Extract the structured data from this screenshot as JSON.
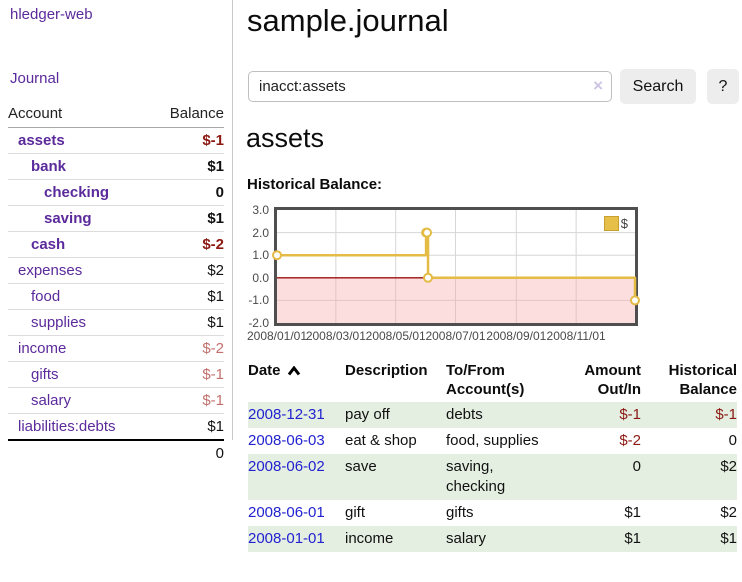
{
  "app": {
    "brand": "hledger-web",
    "nav_journal": "Journal"
  },
  "sidebar": {
    "table_headers": {
      "account": "Account",
      "balance": "Balance"
    },
    "accounts": [
      {
        "name": "assets",
        "level": 1,
        "bold": true,
        "balance": "$-1",
        "balance_style": "neg"
      },
      {
        "name": "bank",
        "level": 2,
        "bold": true,
        "balance": "$1",
        "balance_style": "pos"
      },
      {
        "name": "checking",
        "level": 3,
        "bold": true,
        "balance": "0",
        "balance_style": "pos"
      },
      {
        "name": "saving",
        "level": 3,
        "bold": true,
        "balance": "$1",
        "balance_style": "pos"
      },
      {
        "name": "cash",
        "level": 2,
        "bold": true,
        "balance": "$-2",
        "balance_style": "neg"
      },
      {
        "name": "expenses",
        "level": 1,
        "bold": false,
        "balance": "$2",
        "balance_style": "pos"
      },
      {
        "name": "food",
        "level": 2,
        "bold": false,
        "balance": "$1",
        "balance_style": "pos"
      },
      {
        "name": "supplies",
        "level": 2,
        "bold": false,
        "balance": "$1",
        "balance_style": "pos"
      },
      {
        "name": "income",
        "level": 1,
        "bold": false,
        "balance": "$-2",
        "balance_style": "neg-muted"
      },
      {
        "name": "gifts",
        "level": 2,
        "bold": false,
        "balance": "$-1",
        "balance_style": "neg-muted"
      },
      {
        "name": "salary",
        "level": 2,
        "bold": false,
        "balance": "$-1",
        "balance_style": "neg-muted"
      },
      {
        "name": "liabilities:debts",
        "level": 1,
        "bold": false,
        "balance": "$1",
        "balance_style": "pos"
      }
    ],
    "total": "0"
  },
  "header": {
    "title": "sample.journal"
  },
  "search": {
    "value": "inacct:assets",
    "clear_label": "×",
    "button": "Search",
    "help": "?"
  },
  "account_page": {
    "title": "assets",
    "chart_label": "Historical Balance:"
  },
  "chart_data": {
    "type": "line",
    "step": true,
    "title": "Historical Balance",
    "legend": "$",
    "legend_position": "top-right",
    "grid": true,
    "ylim": [
      -2,
      3
    ],
    "yticks": [
      3.0,
      2.0,
      1.0,
      0.0,
      -1.0,
      -2.0
    ],
    "xticks": [
      {
        "label": "2008/01/01",
        "x": 0.0
      },
      {
        "label": "2008/03/01",
        "x": 0.1644
      },
      {
        "label": "2008/05/01",
        "x": 0.3315
      },
      {
        "label": "2008/07/01",
        "x": 0.4986
      },
      {
        "label": "2008/09/01",
        "x": 0.6685
      },
      {
        "label": "2008/11/01",
        "x": 0.8356
      }
    ],
    "series": [
      {
        "name": "$",
        "color": "#e4bb45",
        "points": [
          {
            "date": "2008-01-01",
            "x": 0.0,
            "y": 1
          },
          {
            "date": "2008-06-01",
            "x": 0.4164,
            "y": 2
          },
          {
            "date": "2008-06-02",
            "x": 0.4192,
            "y": 2
          },
          {
            "date": "2008-06-03",
            "x": 0.4219,
            "y": 0
          },
          {
            "date": "2008-12-31",
            "x": 1.0,
            "y": -1
          }
        ]
      }
    ],
    "negative_region_fill": "#fcdcdc",
    "zero_line_color": "#9c1010"
  },
  "register": {
    "headers": {
      "date": "Date",
      "description": "Description",
      "accounts": "To/From Account(s)",
      "amount": "Amount Out/In",
      "balance": "Historical Balance"
    },
    "rows": [
      {
        "date": "2008-12-31",
        "description": "pay off",
        "accounts": "debts",
        "amount": "$-1",
        "amount_neg": true,
        "balance": "$-1",
        "balance_neg": true
      },
      {
        "date": "2008-06-03",
        "description": "eat & shop",
        "accounts": "food, supplies",
        "amount": "$-2",
        "amount_neg": true,
        "balance": "0",
        "balance_neg": false
      },
      {
        "date": "2008-06-02",
        "description": "save",
        "accounts": "saving, checking",
        "amount": "0",
        "amount_neg": false,
        "balance": "$2",
        "balance_neg": false
      },
      {
        "date": "2008-06-01",
        "description": "gift",
        "accounts": "gifts",
        "amount": "$1",
        "amount_neg": false,
        "balance": "$2",
        "balance_neg": false
      },
      {
        "date": "2008-01-01",
        "description": "income",
        "accounts": "salary",
        "amount": "$1",
        "amount_neg": false,
        "balance": "$1",
        "balance_neg": false
      }
    ]
  },
  "colors": {
    "link_purple": "#5b2a9b",
    "link_blue": "#2222cf",
    "negative_red": "#8c1812",
    "negative_red_muted": "#c2706d",
    "row_stripe_green": "#e4efe2",
    "chart_line_gold": "#e4bb45",
    "chart_negative_pink": "#fcdcdc",
    "chart_zero_line": "#9c1010",
    "chart_border": "#4f4f4f",
    "button_bg": "#ededed"
  }
}
